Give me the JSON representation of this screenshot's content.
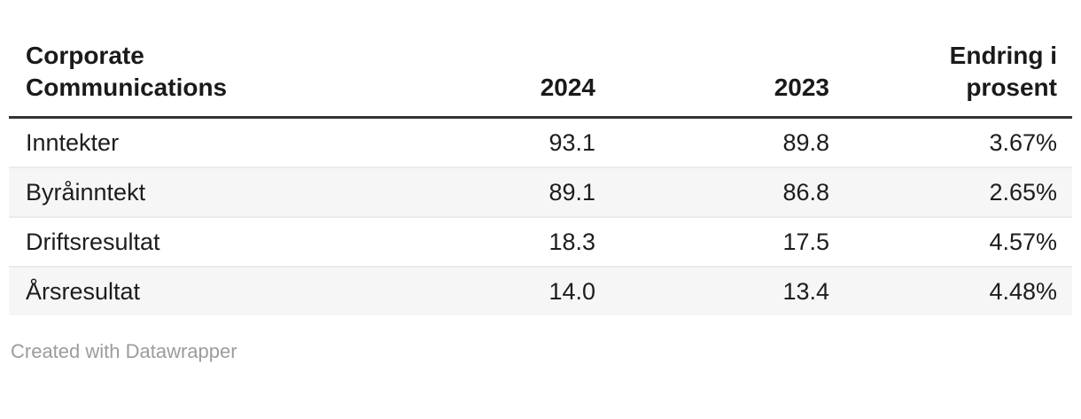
{
  "header": {
    "corner": "Corporate Communications",
    "col_2024": "2024",
    "col_2023": "2023",
    "col_change": "Endring i prosent"
  },
  "rows": [
    {
      "label": "Inntekter",
      "y2024": "93.1",
      "y2023": "89.8",
      "change": "3.67%"
    },
    {
      "label": "Byråinntekt",
      "y2024": "89.1",
      "y2023": "86.8",
      "change": "2.65%"
    },
    {
      "label": "Driftsresultat",
      "y2024": "18.3",
      "y2023": "17.5",
      "change": "4.57%"
    },
    {
      "label": "Årsresultat",
      "y2024": "14.0",
      "y2023": "13.4",
      "change": "4.48%"
    }
  ],
  "footer": {
    "attribution": "Created with Datawrapper"
  },
  "colors": {
    "text": "#1d1d1d",
    "header_text": "#1a1a1a",
    "header_border": "#333333",
    "row_stripe": "#f6f6f6",
    "row_separator": "#ebebeb",
    "attribution_text": "#9c9c9c",
    "background": "#ffffff"
  },
  "chart_data": {
    "type": "table",
    "title": "Corporate Communications",
    "columns": [
      "Corporate Communications",
      "2024",
      "2023",
      "Endring i prosent"
    ],
    "rows": [
      [
        "Inntekter",
        "93.1",
        "89.8",
        "3.67%"
      ],
      [
        "Byråinntekt",
        "89.1",
        "86.8",
        "2.65%"
      ],
      [
        "Driftsresultat",
        "18.3",
        "17.5",
        "4.57%"
      ],
      [
        "Årsresultat",
        "14.0",
        "13.4",
        "4.48%"
      ]
    ],
    "layout_hints": {
      "first_column_align": "left",
      "numeric_columns_align": "right",
      "striped_rows": true,
      "stripe_on": "even rows (2nd and 4th)",
      "attribution": "Created with Datawrapper"
    }
  }
}
